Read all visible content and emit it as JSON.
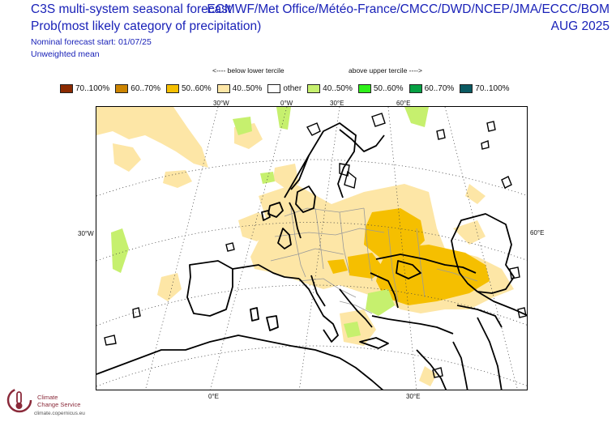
{
  "header": {
    "title_left": "C3S multi-system seasonal forecast",
    "subtitle_left": "Prob(most likely category of precipitation)",
    "meta_start": "Nominal forecast start: 01/07/25",
    "meta_weight": "Unweighted mean",
    "title_right": "ECMWF/Met Office/Météo-France/CMCC/DWD/NCEP/JMA/ECCC/BOM",
    "date_right": "AUG 2025"
  },
  "tercile": {
    "below": "<---- below lower tercile",
    "above": "above upper tercile ---->"
  },
  "legend": [
    {
      "label": "70..100%",
      "color": "#8b2a00"
    },
    {
      "label": "60..70%",
      "color": "#cc8400"
    },
    {
      "label": "50..60%",
      "color": "#f5bf00"
    },
    {
      "label": "40..50%",
      "color": "#fde6a6"
    },
    {
      "label": "other",
      "color": "#ffffff"
    },
    {
      "label": "40..50%",
      "color": "#c6f06e"
    },
    {
      "label": "50..60%",
      "color": "#2ef01a"
    },
    {
      "label": "60..70%",
      "color": "#06a043"
    },
    {
      "label": "70..100%",
      "color": "#0a5a62"
    }
  ],
  "axes": {
    "top": [
      "30°W",
      "0°W",
      "30°E",
      "60°E"
    ],
    "left": "30°W",
    "right": "60°E",
    "bottom": [
      "0°E",
      "30°E"
    ]
  },
  "logo": {
    "name_line1": "Climate",
    "name_line2": "Change Service",
    "url": "climate.copernicus.eu"
  }
}
